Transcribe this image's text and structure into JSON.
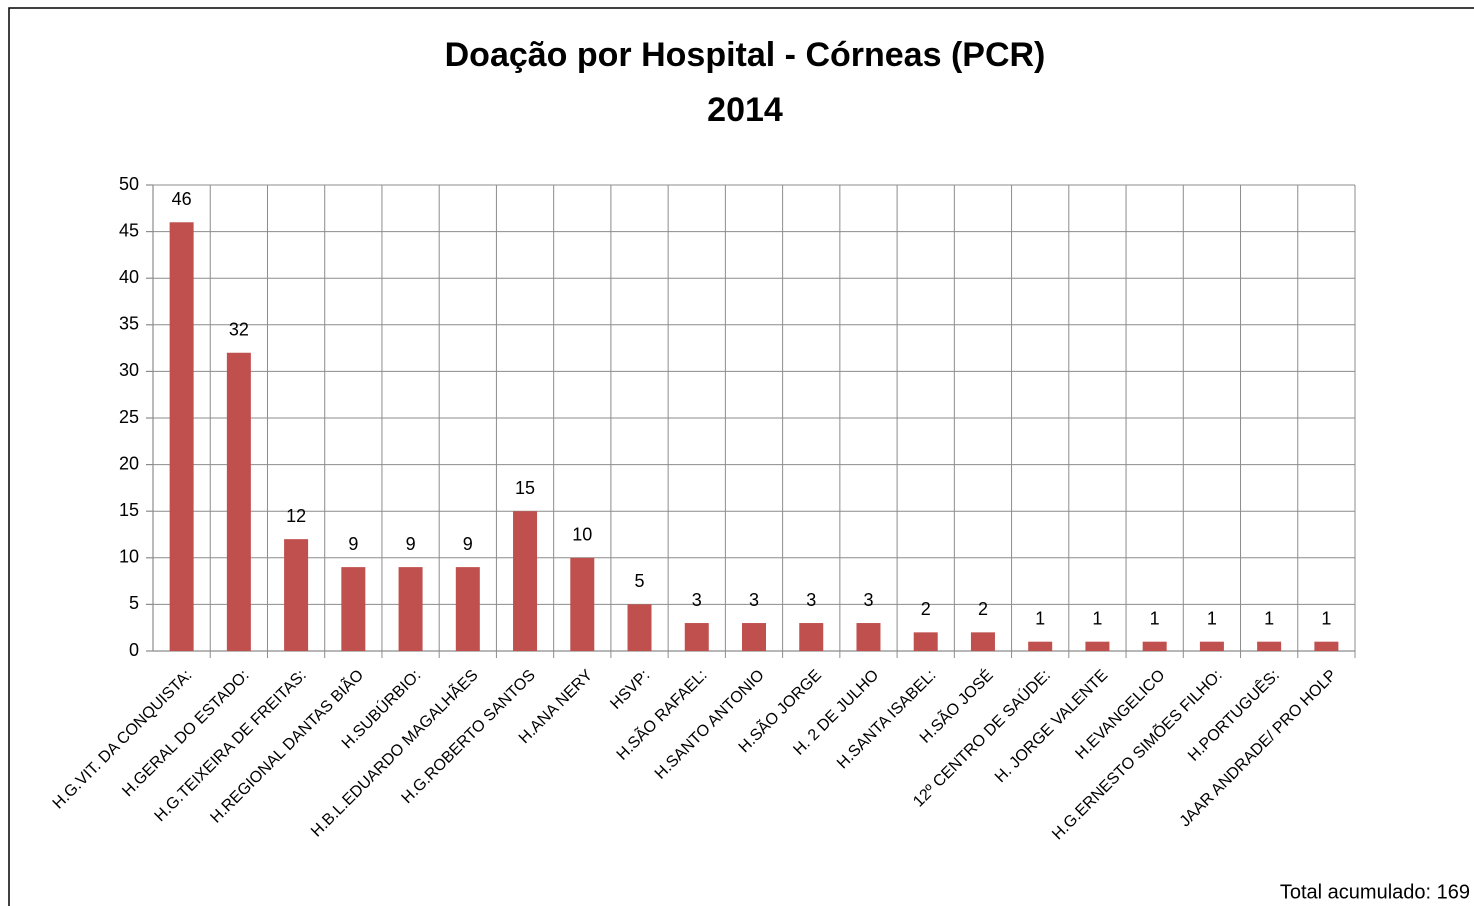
{
  "chart_data": {
    "type": "bar",
    "title": "Doação por Hospital - Córneas (PCR)",
    "subtitle": "2014",
    "categories": [
      "H.G.VIT. DA CONQUISTA:",
      "H.GERAL DO ESTADO:",
      "H.G.TEIXEIRA DE FREITAS:",
      "H.REGIONAL DANTAS BIÃO",
      "H.SUBÚRBIO:",
      "H.B.L.EDUARDO MAGALHÃES",
      "H.G.ROBERTO SANTOS",
      "H.ANA NERY",
      "HSVP:",
      "H.SÃO RAFAEL:",
      "H.SANTO ANTONIO",
      "H.SÃO JORGE",
      "H. 2 DE JULHO",
      "H.SANTA ISABEL:",
      "H.SÃO JOSÉ",
      "12º CENTRO DE SAÚDE:",
      "H. JORGE VALENTE",
      "H.EVANGELICO",
      "H.G.ERNESTO SIMÕES FILHO:",
      "H.PORTUGUÊS:",
      "JAAR ANDRADE/ PRO HOLP"
    ],
    "values": [
      46,
      32,
      12,
      9,
      9,
      9,
      15,
      10,
      5,
      3,
      3,
      3,
      3,
      2,
      2,
      1,
      1,
      1,
      1,
      1,
      1
    ],
    "color": "#c0504d",
    "ylim": [
      0,
      50
    ],
    "yticks": [
      0,
      5,
      10,
      15,
      20,
      25,
      30,
      35,
      40,
      45,
      50
    ],
    "grid": true,
    "annotation": "Total acumulado: 169"
  }
}
